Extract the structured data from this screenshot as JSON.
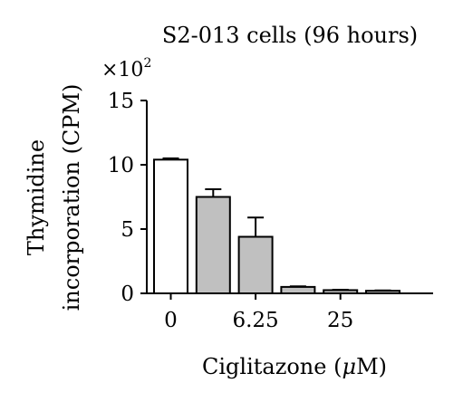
{
  "chart_data": {
    "type": "bar",
    "title": "S2-013 cells (96 hours)",
    "ylabel_line1": "Thymidine",
    "ylabel_line2": "incorporation (CPM)",
    "xlabel_main": "Ciglitazone (",
    "xlabel_mu": "μ",
    "xlabel_end": "M)",
    "y_multiplier_base": "×10",
    "y_multiplier_exp": "2",
    "ylim": [
      0,
      15
    ],
    "yticks": [
      "0",
      "5",
      "10",
      "15"
    ],
    "xtick_labels": [
      {
        "label": "0",
        "at_bar": 0
      },
      {
        "label": "6.25",
        "at_bar": 2
      },
      {
        "label": "25",
        "at_bar": 4
      }
    ],
    "bars": [
      {
        "value": 10.4,
        "error": 0.1,
        "fill": "#ffffff"
      },
      {
        "value": 7.5,
        "error": 0.6,
        "fill": "#c0c0c0"
      },
      {
        "value": 4.4,
        "error": 1.5,
        "fill": "#c0c0c0"
      },
      {
        "value": 0.5,
        "error": 0.05,
        "fill": "#c0c0c0"
      },
      {
        "value": 0.25,
        "error": 0.03,
        "fill": "#c0c0c0"
      },
      {
        "value": 0.2,
        "error": 0.03,
        "fill": "#c0c0c0"
      }
    ]
  }
}
